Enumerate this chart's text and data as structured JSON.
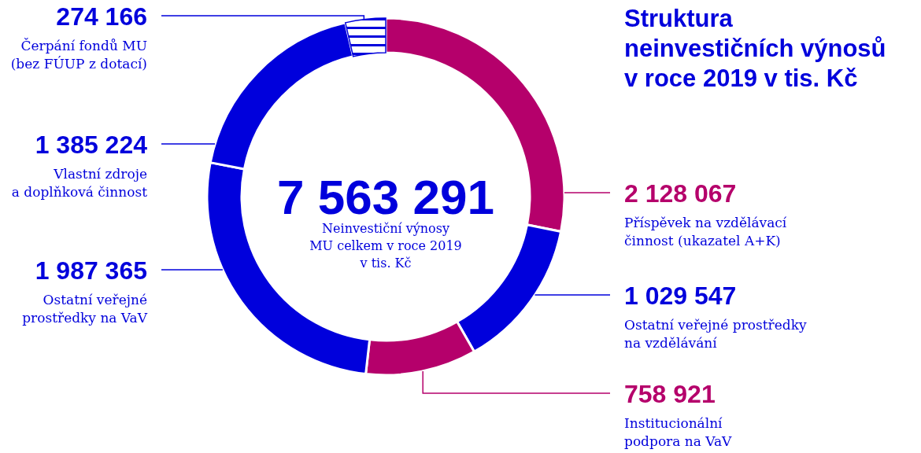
{
  "chart_data": {
    "type": "donut",
    "title": "Struktura neinvestičních výnosů v roce 2019 v tis. Kč",
    "categories": [
      "Příspěvek na vzdělávací činnost (ukazatel A+K)",
      "Ostatní veřejné prostředky na vzdělávání",
      "Institucionální podpora na VaV",
      "Ostatní veřejné prostředky na VaV",
      "Vlastní zdroje a doplňková činnost",
      "Čerpání fondů MU (bez FÚUP z dotací)"
    ],
    "values": [
      2128067,
      1029547,
      758921,
      1987365,
      1385224,
      274166
    ],
    "value_labels": [
      "2 128 067",
      "1 029 547",
      "758 921",
      "1 987 365",
      "1 385 224",
      "274 166"
    ],
    "colors": [
      "#b5006b",
      "#0000dc",
      "#b5006b",
      "#0000dc",
      "#0000dc",
      "#0000dc"
    ],
    "annotations": [
      "7 563 291",
      "Neinvestiční výnosy MU celkem v roce 2019 v tis. Kč"
    ]
  }
}
